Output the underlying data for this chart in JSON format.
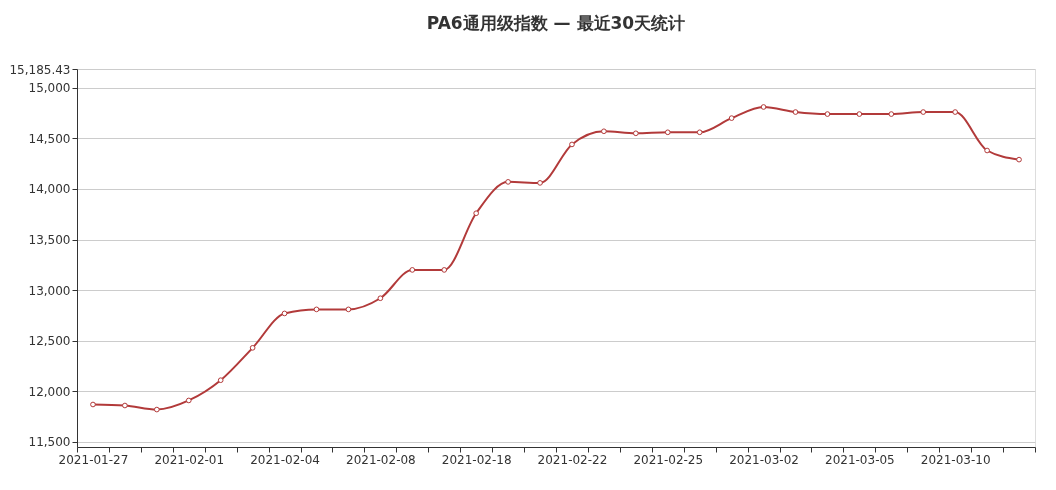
{
  "chart_data": {
    "type": "line",
    "title": "PA6通用级指数   —   最近30天统计",
    "categories": [
      "2021-01-27",
      null,
      null,
      "2021-02-01",
      null,
      null,
      "2021-02-04",
      null,
      null,
      "2021-02-08",
      null,
      null,
      "2021-02-18",
      null,
      null,
      "2021-02-22",
      null,
      null,
      "2021-02-25",
      null,
      null,
      "2021-03-02",
      null,
      null,
      "2021-03-05",
      null,
      null,
      "2021-03-10",
      null,
      null
    ],
    "series": [
      {
        "color": "#b23a3a",
        "values": [
          11870,
          11860,
          11820,
          11910,
          12110,
          12430,
          12770,
          12810,
          12810,
          12920,
          13200,
          13200,
          13760,
          14070,
          14060,
          14440,
          14570,
          14550,
          14560,
          14560,
          14700,
          14810,
          14760,
          14740,
          14740,
          14740,
          14760,
          14760,
          14380,
          14290
        ]
      }
    ],
    "ylim": [
      11450,
      15185.43
    ],
    "yticks": [
      {
        "value": 11500,
        "label": "11,500"
      },
      {
        "value": 12000,
        "label": "12,000"
      },
      {
        "value": 12500,
        "label": "12,500"
      },
      {
        "value": 13000,
        "label": "13,000"
      },
      {
        "value": 13500,
        "label": "13,500"
      },
      {
        "value": 14000,
        "label": "14,000"
      },
      {
        "value": 14500,
        "label": "14,500"
      },
      {
        "value": 15000,
        "label": "15,000"
      },
      {
        "value": 15185.43,
        "label": "15,185.43"
      }
    ],
    "grid": "y",
    "marker": "circle",
    "line_style": "solid",
    "legend": false
  }
}
